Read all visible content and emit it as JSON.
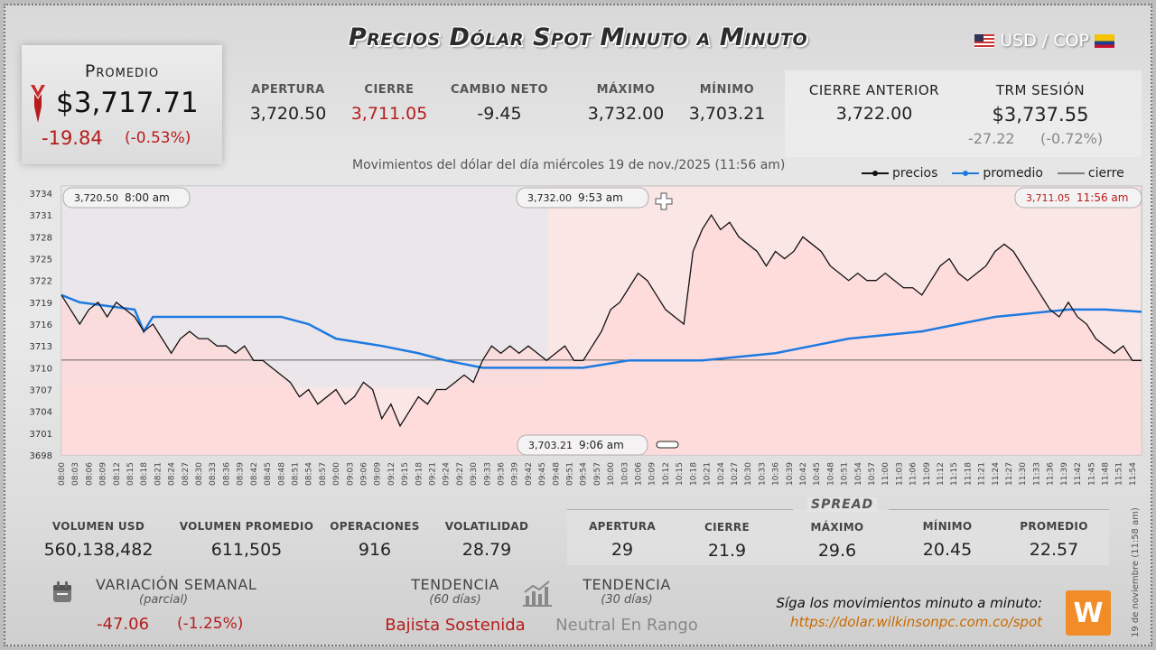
{
  "header": {
    "title": "Precios Dólar Spot Minuto a Minuto",
    "pair": "USD / COP"
  },
  "promedio": {
    "label": "Promedio",
    "value": "$3,717.71",
    "change": "-19.84",
    "change_pct": "(-0.53%)"
  },
  "stats": [
    {
      "label": "Apertura",
      "value": "3,720.50",
      "color": "#222222"
    },
    {
      "label": "Cierre",
      "value": "3,711.05",
      "color": "#b71c1c"
    },
    {
      "label": "Cambio Neto",
      "value": "-9.45",
      "color": "#222222"
    },
    {
      "label": "Máximo",
      "value": "3,732.00",
      "color": "#222222"
    },
    {
      "label": "Mínimo",
      "value": "3,703.21",
      "color": "#222222"
    }
  ],
  "right_stats": {
    "prev_close_label": "Cierre Anterior",
    "prev_close_value": "3,722.00",
    "trm_label": "TRM Sesión",
    "trm_value": "$3,737.55",
    "trm_change": "-27.22",
    "trm_change_pct": "(-0.72%)"
  },
  "chart_data": {
    "type": "line",
    "subtitle": "Movimientos del dólar del día miércoles 19 de nov./2025 (11:56 am)",
    "legend": [
      "precios",
      "promedio",
      "cierre"
    ],
    "ylim": [
      3698,
      3735
    ],
    "yticks": [
      3698,
      3701,
      3704,
      3707,
      3710,
      3713,
      3716,
      3719,
      3722,
      3725,
      3728,
      3731,
      3734
    ],
    "xticks": [
      "08:00",
      "08:03",
      "08:06",
      "08:09",
      "08:12",
      "08:15",
      "08:18",
      "08:21",
      "08:24",
      "08:27",
      "08:30",
      "08:33",
      "08:36",
      "08:39",
      "08:42",
      "08:45",
      "08:48",
      "08:51",
      "08:54",
      "08:57",
      "09:00",
      "09:03",
      "09:06",
      "09:09",
      "09:12",
      "09:15",
      "09:18",
      "09:21",
      "09:24",
      "09:27",
      "09:30",
      "09:33",
      "09:36",
      "09:39",
      "09:42",
      "09:45",
      "09:48",
      "09:51",
      "09:54",
      "09:57",
      "10:00",
      "10:03",
      "10:06",
      "10:09",
      "10:12",
      "10:15",
      "10:18",
      "10:21",
      "10:24",
      "10:27",
      "10:30",
      "10:33",
      "10:36",
      "10:39",
      "10:42",
      "10:45",
      "10:48",
      "10:51",
      "10:54",
      "10:57",
      "11:00",
      "11:03",
      "11:06",
      "11:09",
      "11:12",
      "11:15",
      "11:18",
      "11:21",
      "11:24",
      "11:27",
      "11:30",
      "11:33",
      "11:36",
      "11:39",
      "11:42",
      "11:45",
      "11:48",
      "11:51",
      "11:54"
    ],
    "x_start_min": 0,
    "x_end_min": 236,
    "close_value": 3711.05,
    "price_series": {
      "name": "precios",
      "color": "#111111",
      "points": [
        [
          0,
          3720
        ],
        [
          2,
          3718
        ],
        [
          4,
          3716
        ],
        [
          6,
          3718
        ],
        [
          8,
          3719
        ],
        [
          10,
          3717
        ],
        [
          12,
          3719
        ],
        [
          14,
          3718
        ],
        [
          16,
          3717
        ],
        [
          18,
          3715
        ],
        [
          20,
          3716
        ],
        [
          22,
          3714
        ],
        [
          24,
          3712
        ],
        [
          26,
          3714
        ],
        [
          28,
          3715
        ],
        [
          30,
          3714
        ],
        [
          32,
          3714
        ],
        [
          34,
          3713
        ],
        [
          36,
          3713
        ],
        [
          38,
          3712
        ],
        [
          40,
          3713
        ],
        [
          42,
          3711
        ],
        [
          44,
          3711
        ],
        [
          46,
          3710
        ],
        [
          48,
          3709
        ],
        [
          50,
          3708
        ],
        [
          52,
          3706
        ],
        [
          54,
          3707
        ],
        [
          56,
          3705
        ],
        [
          58,
          3706
        ],
        [
          60,
          3707
        ],
        [
          62,
          3705
        ],
        [
          64,
          3706
        ],
        [
          66,
          3708
        ],
        [
          68,
          3707
        ],
        [
          70,
          3703
        ],
        [
          72,
          3705
        ],
        [
          74,
          3702
        ],
        [
          76,
          3704
        ],
        [
          78,
          3706
        ],
        [
          80,
          3705
        ],
        [
          82,
          3707
        ],
        [
          84,
          3707
        ],
        [
          86,
          3708
        ],
        [
          88,
          3709
        ],
        [
          90,
          3708
        ],
        [
          92,
          3711
        ],
        [
          94,
          3713
        ],
        [
          96,
          3712
        ],
        [
          98,
          3713
        ],
        [
          100,
          3712
        ],
        [
          102,
          3713
        ],
        [
          104,
          3712
        ],
        [
          106,
          3711
        ],
        [
          108,
          3712
        ],
        [
          110,
          3713
        ],
        [
          112,
          3711
        ],
        [
          114,
          3711
        ],
        [
          116,
          3713
        ],
        [
          118,
          3715
        ],
        [
          120,
          3718
        ],
        [
          122,
          3719
        ],
        [
          124,
          3721
        ],
        [
          126,
          3723
        ],
        [
          128,
          3722
        ],
        [
          130,
          3720
        ],
        [
          132,
          3718
        ],
        [
          134,
          3717
        ],
        [
          136,
          3716
        ],
        [
          138,
          3726
        ],
        [
          140,
          3729
        ],
        [
          142,
          3731
        ],
        [
          144,
          3729
        ],
        [
          146,
          3730
        ],
        [
          148,
          3728
        ],
        [
          150,
          3727
        ],
        [
          152,
          3726
        ],
        [
          154,
          3724
        ],
        [
          156,
          3726
        ],
        [
          158,
          3725
        ],
        [
          160,
          3726
        ],
        [
          162,
          3728
        ],
        [
          164,
          3727
        ],
        [
          166,
          3726
        ],
        [
          168,
          3724
        ],
        [
          170,
          3723
        ],
        [
          172,
          3722
        ],
        [
          174,
          3723
        ],
        [
          176,
          3722
        ],
        [
          178,
          3722
        ],
        [
          180,
          3723
        ],
        [
          182,
          3722
        ],
        [
          184,
          3721
        ],
        [
          186,
          3721
        ],
        [
          188,
          3720
        ],
        [
          190,
          3722
        ],
        [
          192,
          3724
        ],
        [
          194,
          3725
        ],
        [
          196,
          3723
        ],
        [
          198,
          3722
        ],
        [
          200,
          3723
        ],
        [
          202,
          3724
        ],
        [
          204,
          3726
        ],
        [
          206,
          3727
        ],
        [
          208,
          3726
        ],
        [
          210,
          3724
        ],
        [
          212,
          3722
        ],
        [
          214,
          3720
        ],
        [
          216,
          3718
        ],
        [
          218,
          3717
        ],
        [
          220,
          3719
        ],
        [
          222,
          3717
        ],
        [
          224,
          3716
        ],
        [
          226,
          3714
        ],
        [
          228,
          3713
        ],
        [
          230,
          3712
        ],
        [
          232,
          3713
        ],
        [
          234,
          3711
        ],
        [
          236,
          3711
        ]
      ]
    },
    "average_series": {
      "name": "promedio",
      "color": "#1e7ae0",
      "points": [
        [
          0,
          3720
        ],
        [
          4,
          3719
        ],
        [
          10,
          3718.5
        ],
        [
          16,
          3718
        ],
        [
          18,
          3715
        ],
        [
          20,
          3717
        ],
        [
          28,
          3717
        ],
        [
          36,
          3717
        ],
        [
          48,
          3717
        ],
        [
          54,
          3716
        ],
        [
          60,
          3714
        ],
        [
          70,
          3713
        ],
        [
          78,
          3712
        ],
        [
          84,
          3711
        ],
        [
          92,
          3710
        ],
        [
          104,
          3710
        ],
        [
          114,
          3710
        ],
        [
          124,
          3711
        ],
        [
          132,
          3711
        ],
        [
          140,
          3711
        ],
        [
          148,
          3711.5
        ],
        [
          156,
          3712
        ],
        [
          164,
          3713
        ],
        [
          172,
          3714
        ],
        [
          180,
          3714.5
        ],
        [
          188,
          3715
        ],
        [
          196,
          3716
        ],
        [
          204,
          3717
        ],
        [
          212,
          3717.5
        ],
        [
          220,
          3718
        ],
        [
          228,
          3718
        ],
        [
          236,
          3717.7
        ]
      ]
    },
    "annotations": [
      {
        "text": "3,720.50",
        "time": "8:00 am"
      },
      {
        "text": "3,732.00",
        "time": "9:53 am"
      },
      {
        "text": "3,711.05",
        "time": "11:56 am"
      },
      {
        "text": "3,703.21",
        "time": "9:06 am"
      }
    ]
  },
  "bottom_stats": [
    {
      "label": "Volumen USD",
      "value": "560,138,482"
    },
    {
      "label": "Volumen Promedio",
      "value": "611,505"
    },
    {
      "label": "Operaciones",
      "value": "916"
    },
    {
      "label": "Volatilidad",
      "value": "28.79"
    }
  ],
  "spread": {
    "title": "SPREAD",
    "items": [
      {
        "label": "Apertura",
        "value": "29"
      },
      {
        "label": "Cierre",
        "value": "21.9"
      },
      {
        "label": "Máximo",
        "value": "29.6"
      },
      {
        "label": "Mínimo",
        "value": "20.45"
      },
      {
        "label": "Promedio",
        "value": "22.57"
      }
    ]
  },
  "weekly": {
    "label": "Variación Semanal",
    "sub": "(parcial)",
    "change": "-47.06",
    "change_pct": "(-1.25%)"
  },
  "trends": [
    {
      "label": "Tendencia",
      "sub": "(60 días)",
      "value": "Bajista Sostenida",
      "color": "#b71c1c"
    },
    {
      "label": "Tendencia",
      "sub": "(30 días)",
      "value": "Neutral En Rango",
      "color": "#888888"
    }
  ],
  "footer": {
    "promo_text": "Síga los movimientos minuto a minuto:",
    "promo_link": "https://dolar.wilkinsonpc.com.co/spot",
    "logo_text": "W",
    "stamp": "19 de noviembre (11:58 am)"
  }
}
